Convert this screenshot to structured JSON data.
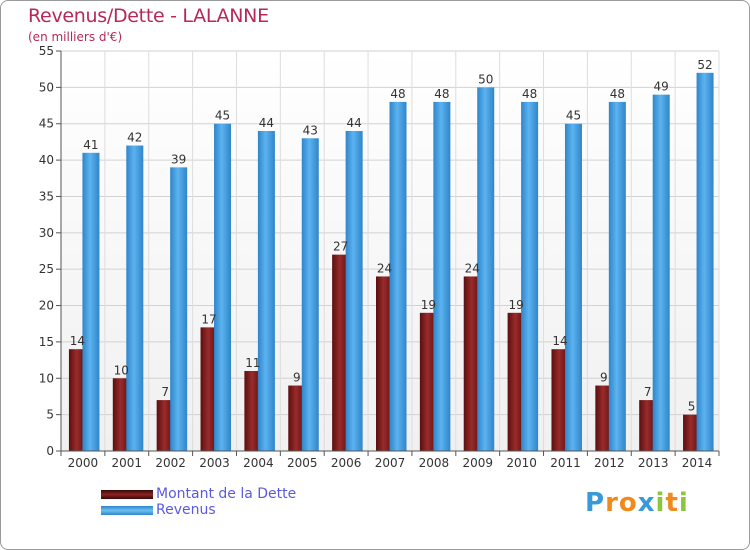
{
  "chart_data": {
    "type": "bar",
    "title": "Revenus/Dette - LALANNE",
    "subtitle": "(en milliers d'€)",
    "xlabel": "",
    "ylabel": "",
    "ylim": [
      0,
      55
    ],
    "yticks": [
      0,
      5,
      10,
      15,
      20,
      25,
      30,
      35,
      40,
      45,
      50,
      55
    ],
    "grid": true,
    "categories": [
      "2000",
      "2001",
      "2002",
      "2003",
      "2004",
      "2005",
      "2006",
      "2007",
      "2008",
      "2009",
      "2010",
      "2011",
      "2012",
      "2013",
      "2014"
    ],
    "series": [
      {
        "name": "Montant de la Dette",
        "color": "#7a1a1a",
        "values": [
          14,
          10,
          7,
          17,
          11,
          9,
          27,
          24,
          19,
          24,
          19,
          14,
          9,
          7,
          5
        ]
      },
      {
        "name": "Revenus",
        "color": "#4da6e8",
        "values": [
          41,
          42,
          39,
          45,
          44,
          43,
          44,
          48,
          48,
          50,
          48,
          45,
          48,
          49,
          52
        ]
      }
    ],
    "legend_position": "bottom-left"
  },
  "logo": {
    "letters": [
      "P",
      "r",
      "o",
      "x",
      "i",
      "t",
      "i"
    ],
    "colors": [
      "#3a9ad9",
      "#f08a1c",
      "#f08a1c",
      "#3a9ad9",
      "#8cc63f",
      "#f08a1c",
      "#8cc63f"
    ]
  }
}
